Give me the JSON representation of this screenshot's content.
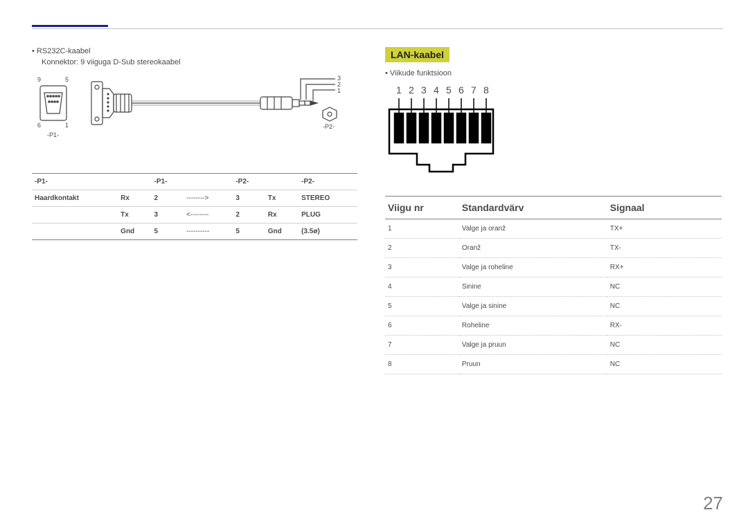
{
  "page_number": "27",
  "left": {
    "bullet": "RS232C-kaabel",
    "sub": "Konnektor: 9 viiguga D-Sub stereokaabel",
    "dsub": {
      "p1": "-P1-",
      "p2": "-P2-",
      "pin_tl": "9",
      "pin_tr": "5",
      "pin_bl": "6",
      "pin_br": "1",
      "jack_3": "3",
      "jack_2": "2",
      "jack_1": "1"
    },
    "table": {
      "headers": [
        "-P1-",
        "",
        "-P1-",
        "",
        "-P2-",
        "",
        "-P2-"
      ],
      "side": "Haardkontakt",
      "rows": [
        [
          "Rx",
          "2",
          "-------->",
          "3",
          "Tx",
          "STEREO"
        ],
        [
          "Tx",
          "3",
          "<--------",
          "2",
          "Rx",
          "PLUG"
        ],
        [
          "Gnd",
          "5",
          "----------",
          "5",
          "Gnd",
          "(3.5ø)"
        ]
      ]
    }
  },
  "right": {
    "heading": "LAN-kaabel",
    "bullet": "Viikude funktsioon",
    "pins": [
      "1",
      "2",
      "3",
      "4",
      "5",
      "6",
      "7",
      "8"
    ],
    "table": {
      "headers": [
        "Viigu nr",
        "Standardvärv",
        "Signaal"
      ],
      "rows": [
        [
          "1",
          "Valge ja oranž",
          "TX+"
        ],
        [
          "2",
          "Oranž",
          "TX-"
        ],
        [
          "3",
          "Valge ja roheline",
          "RX+"
        ],
        [
          "4",
          "Sinine",
          "NC"
        ],
        [
          "5",
          "Valge ja sinine",
          "NC"
        ],
        [
          "6",
          "Roheline",
          "RX-"
        ],
        [
          "7",
          "Valge ja pruun",
          "NC"
        ],
        [
          "8",
          "Pruun",
          "NC"
        ]
      ]
    }
  },
  "style": {
    "accent": "#1a237e",
    "heading_bg": "#cfd13c",
    "text": "#4a4a4a",
    "rule": "#808080",
    "light": "#c0c0c0"
  }
}
